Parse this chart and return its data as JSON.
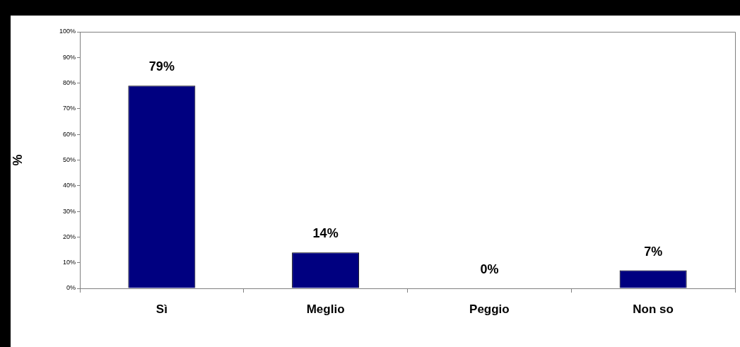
{
  "chart_data": {
    "type": "bar",
    "ylabel": "%",
    "categories": [
      "Sì",
      "Meglio",
      "Peggio",
      "Non so"
    ],
    "values": [
      79,
      14,
      0,
      7
    ],
    "color": "#000080",
    "value_labels": [
      "79%",
      "14%",
      "0%",
      "7%"
    ],
    "ylim": [
      0,
      100
    ],
    "yticks": [
      {
        "value": 0,
        "label": "0%"
      },
      {
        "value": 10,
        "label": "10%"
      },
      {
        "value": 20,
        "label": "20%"
      },
      {
        "value": 30,
        "label": "30%"
      },
      {
        "value": 40,
        "label": "40%"
      },
      {
        "value": 50,
        "label": "50%"
      },
      {
        "value": 60,
        "label": "60%"
      },
      {
        "value": 70,
        "label": "70%"
      },
      {
        "value": 80,
        "label": "80%"
      },
      {
        "value": 90,
        "label": "90%"
      },
      {
        "value": 100,
        "label": "100%"
      }
    ],
    "grid": false,
    "legend": false
  }
}
